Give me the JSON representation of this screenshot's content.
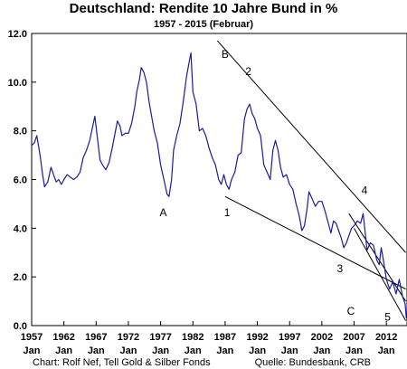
{
  "chart_data": {
    "type": "line",
    "title": "Deutschland: Rendite 10 Jahre Bund  in %",
    "subtitle": "1957 - 2015 (Februar)",
    "xlabel": "",
    "ylabel": "",
    "x_range": [
      "1957-01",
      "2015-02"
    ],
    "ylim": [
      0,
      12
    ],
    "y_ticks": [
      "12.0",
      "10.0",
      "8.0",
      "6.0",
      "4.0",
      "2.0",
      "0.0"
    ],
    "x_ticks": [
      {
        "year": "1957",
        "month": "Jan"
      },
      {
        "year": "1962",
        "month": "Jan"
      },
      {
        "year": "1967",
        "month": "Jan"
      },
      {
        "year": "1972",
        "month": "Jan"
      },
      {
        "year": "1977",
        "month": "Jan"
      },
      {
        "year": "1982",
        "month": "Jan"
      },
      {
        "year": "1987",
        "month": "Jan"
      },
      {
        "year": "1992",
        "month": "Jan"
      },
      {
        "year": "1997",
        "month": "Jan"
      },
      {
        "year": "2002",
        "month": "Jan"
      },
      {
        "year": "2007",
        "month": "Jan"
      },
      {
        "year": "2012",
        "month": "Jan"
      }
    ],
    "grid": false,
    "line_color": "#1a1aa0",
    "series": [
      {
        "x": [
          1957.0,
          1957.4,
          1957.8,
          1958.3,
          1958.7,
          1959.0,
          1959.5,
          1960.0,
          1960.4,
          1960.8,
          1961.2,
          1961.6,
          1962.0,
          1962.5,
          1963.0,
          1963.5,
          1964.0,
          1964.5,
          1965.0,
          1965.5,
          1966.0,
          1966.4,
          1966.8,
          1967.2,
          1967.6,
          1968.0,
          1968.5,
          1969.0,
          1969.5,
          1970.0,
          1970.3,
          1970.7,
          1971.0,
          1971.5,
          1972.0,
          1972.5,
          1973.0,
          1973.3,
          1973.7,
          1974.0,
          1974.4,
          1974.8,
          1975.2,
          1975.6,
          1976.0,
          1976.5,
          1977.0,
          1977.5,
          1978.0,
          1978.3,
          1978.7,
          1979.0,
          1979.5,
          1980.0,
          1980.5,
          1981.0,
          1981.4,
          1981.7,
          1982.0,
          1982.5,
          1983.0,
          1983.5,
          1984.0,
          1984.5,
          1985.0,
          1985.5,
          1986.0,
          1986.4,
          1986.8,
          1987.2,
          1987.6,
          1988.0,
          1988.5,
          1989.0,
          1989.5,
          1990.0,
          1990.4,
          1990.8,
          1991.2,
          1991.6,
          1992.0,
          1992.5,
          1993.0,
          1993.5,
          1994.0,
          1994.4,
          1994.8,
          1995.2,
          1995.6,
          1996.0,
          1996.5,
          1997.0,
          1997.5,
          1998.0,
          1998.5,
          1998.9,
          1999.3,
          1999.7,
          2000.0,
          2000.5,
          2001.0,
          2001.5,
          2002.0,
          2002.5,
          2003.0,
          2003.4,
          2003.8,
          2004.2,
          2004.6,
          2005.0,
          2005.4,
          2005.8,
          2006.2,
          2006.6,
          2007.0,
          2007.5,
          2008.0,
          2008.4,
          2008.8,
          2009.0,
          2009.5,
          2010.0,
          2010.5,
          2010.9,
          2011.2,
          2011.6,
          2012.0,
          2012.5,
          2013.0,
          2013.5,
          2014.0,
          2014.5,
          2014.9,
          2015.1
        ],
        "y": [
          7.4,
          7.5,
          7.8,
          7.0,
          6.2,
          5.7,
          5.9,
          6.5,
          6.2,
          5.9,
          6.0,
          5.8,
          6.0,
          6.2,
          6.1,
          6.0,
          6.1,
          6.3,
          6.9,
          7.2,
          7.6,
          8.1,
          8.6,
          7.7,
          6.8,
          6.6,
          6.4,
          6.7,
          7.3,
          8.0,
          8.4,
          8.2,
          7.8,
          7.9,
          7.9,
          8.3,
          9.0,
          9.6,
          10.1,
          10.6,
          10.4,
          10.0,
          9.2,
          8.6,
          8.0,
          7.5,
          6.6,
          6.0,
          5.4,
          5.3,
          6.0,
          7.2,
          7.8,
          8.3,
          9.2,
          10.2,
          10.8,
          11.2,
          9.6,
          9.1,
          8.0,
          8.1,
          7.8,
          7.3,
          6.9,
          6.6,
          6.0,
          5.8,
          6.2,
          5.8,
          5.6,
          6.0,
          6.3,
          7.0,
          7.1,
          8.5,
          8.9,
          9.1,
          8.7,
          8.5,
          8.1,
          7.8,
          6.6,
          6.3,
          6.0,
          7.2,
          7.6,
          7.2,
          6.5,
          6.1,
          6.2,
          5.8,
          5.6,
          5.0,
          4.5,
          3.9,
          4.1,
          4.8,
          5.5,
          5.2,
          4.9,
          5.1,
          5.1,
          4.7,
          4.2,
          3.8,
          4.3,
          4.2,
          3.9,
          3.6,
          3.2,
          3.4,
          3.7,
          4.0,
          4.1,
          4.3,
          4.2,
          4.6,
          3.6,
          3.1,
          3.4,
          3.3,
          2.7,
          2.5,
          3.2,
          2.6,
          1.9,
          1.5,
          1.8,
          1.3,
          1.9,
          1.2,
          0.9,
          0.3
        ]
      }
    ],
    "annotations": [
      {
        "label": "A",
        "x": 1977.4,
        "y": 4.5
      },
      {
        "label": "1",
        "x": 1987.3,
        "y": 4.5
      },
      {
        "label": "B",
        "x": 1987.0,
        "y": 11.0
      },
      {
        "label": "2",
        "x": 1990.6,
        "y": 10.3
      },
      {
        "label": "3",
        "x": 2004.8,
        "y": 2.2
      },
      {
        "label": "4",
        "x": 2008.6,
        "y": 5.4
      },
      {
        "label": "C",
        "x": 2006.5,
        "y": 0.45
      },
      {
        "label": "5",
        "x": 2012.2,
        "y": 0.2
      }
    ],
    "trend_lines": [
      {
        "from": [
          1985.8,
          11.7
        ],
        "to": [
          2015.0,
          3.0
        ]
      },
      {
        "from": [
          1987.0,
          5.3
        ],
        "to": [
          2015.0,
          1.5
        ]
      },
      {
        "from": [
          2006.2,
          4.6
        ],
        "to": [
          2015.0,
          1.0
        ]
      },
      {
        "from": [
          2007.0,
          4.0
        ],
        "to": [
          2015.0,
          0.2
        ]
      }
    ]
  },
  "footer": {
    "source_left": "Chart: Rolf Nef, Tell Gold & Silber Fonds",
    "source_right": "Quelle: Bundesbank, CRB"
  }
}
